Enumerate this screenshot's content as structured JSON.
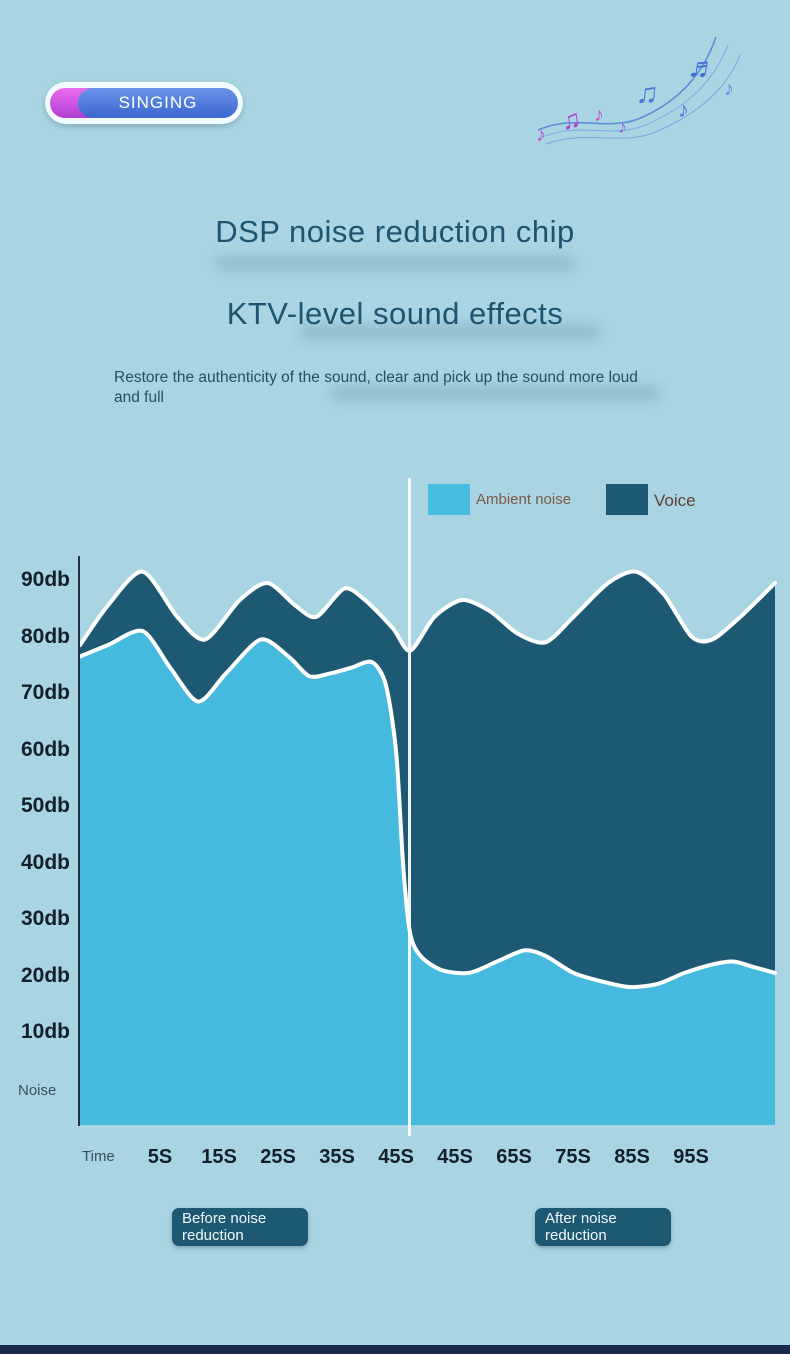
{
  "badge": {
    "label": "SINGING"
  },
  "titles": {
    "line1": "DSP noise reduction chip",
    "line2": "KTV-level sound effects"
  },
  "subtitle": "Restore the authenticity of the sound, clear and pick up the sound more loud and full",
  "legend": [
    {
      "label": "Ambient noise",
      "color": "#49bce1"
    },
    {
      "label": "Voice",
      "color": "#1d5972"
    }
  ],
  "axis": {
    "y_labels": [
      "90db",
      "80db",
      "70db",
      "60db",
      "50db",
      "40db",
      "30db",
      "20db",
      "10db"
    ],
    "y_bottom_label": "Noise",
    "x_origin_label": "Time",
    "x_labels": [
      "5S",
      "15S",
      "25S",
      "35S",
      "45S",
      "45S",
      "65S",
      "75S",
      "85S",
      "95S"
    ]
  },
  "annotations": {
    "before": "Before noise reduction",
    "after": "After noise reduction"
  },
  "colors": {
    "background": "#a9d5e2",
    "ambient_fill": "#45bade",
    "voice_fill": "#1d5972",
    "line_stroke": "#ffffff",
    "title_text": "#1b556f",
    "bottom_bar": "#1b2a4c",
    "note_purple": "#c44fd4",
    "note_blue": "#4a7bd8"
  },
  "chart_data": {
    "type": "area",
    "title": "Noise level before and after DSP noise reduction",
    "xlabel": "Time",
    "ylabel": "Noise",
    "ylim": [
      0,
      100
    ],
    "x_unit": "seconds (percent of timeline 0-100)",
    "x_tick_labels": [
      "5S",
      "15S",
      "25S",
      "35S",
      "45S",
      "45S",
      "65S",
      "75S",
      "85S",
      "95S"
    ],
    "divider_t": 47.5,
    "legend_position": "top-right",
    "grid": false,
    "series": [
      {
        "name": "Voice",
        "color": "#1d5972",
        "points": [
          [
            0,
            79
          ],
          [
            4,
            86
          ],
          [
            9,
            92
          ],
          [
            14,
            84
          ],
          [
            18,
            80
          ],
          [
            23,
            87
          ],
          [
            27,
            90
          ],
          [
            31,
            86
          ],
          [
            34,
            84
          ],
          [
            38,
            89
          ],
          [
            41,
            87
          ],
          [
            45,
            82
          ],
          [
            47.5,
            78
          ],
          [
            51,
            84
          ],
          [
            55,
            87
          ],
          [
            59,
            85
          ],
          [
            63,
            81
          ],
          [
            67,
            79.5
          ],
          [
            71,
            84
          ],
          [
            76,
            90
          ],
          [
            80,
            92
          ],
          [
            84,
            88
          ],
          [
            88,
            80.5
          ],
          [
            91,
            80
          ],
          [
            95,
            84
          ],
          [
            100,
            90
          ]
        ]
      },
      {
        "name": "Ambient noise",
        "color": "#45bade",
        "points": [
          [
            0,
            77
          ],
          [
            4,
            79
          ],
          [
            9,
            81.5
          ],
          [
            13,
            75
          ],
          [
            17,
            69
          ],
          [
            21,
            74
          ],
          [
            26,
            80
          ],
          [
            30,
            77
          ],
          [
            33,
            73.5
          ],
          [
            36,
            74
          ],
          [
            39,
            75
          ],
          [
            42,
            76
          ],
          [
            44,
            72
          ],
          [
            45.5,
            60
          ],
          [
            46.5,
            40
          ],
          [
            47.5,
            28
          ],
          [
            49,
            24
          ],
          [
            52,
            21.5
          ],
          [
            56,
            21
          ],
          [
            60,
            23
          ],
          [
            64,
            25
          ],
          [
            67,
            24
          ],
          [
            71,
            21
          ],
          [
            75,
            19.5
          ],
          [
            79,
            18.5
          ],
          [
            83,
            19
          ],
          [
            87,
            21
          ],
          [
            91,
            22.5
          ],
          [
            94,
            23
          ],
          [
            97,
            22
          ],
          [
            100,
            21
          ]
        ]
      }
    ]
  }
}
